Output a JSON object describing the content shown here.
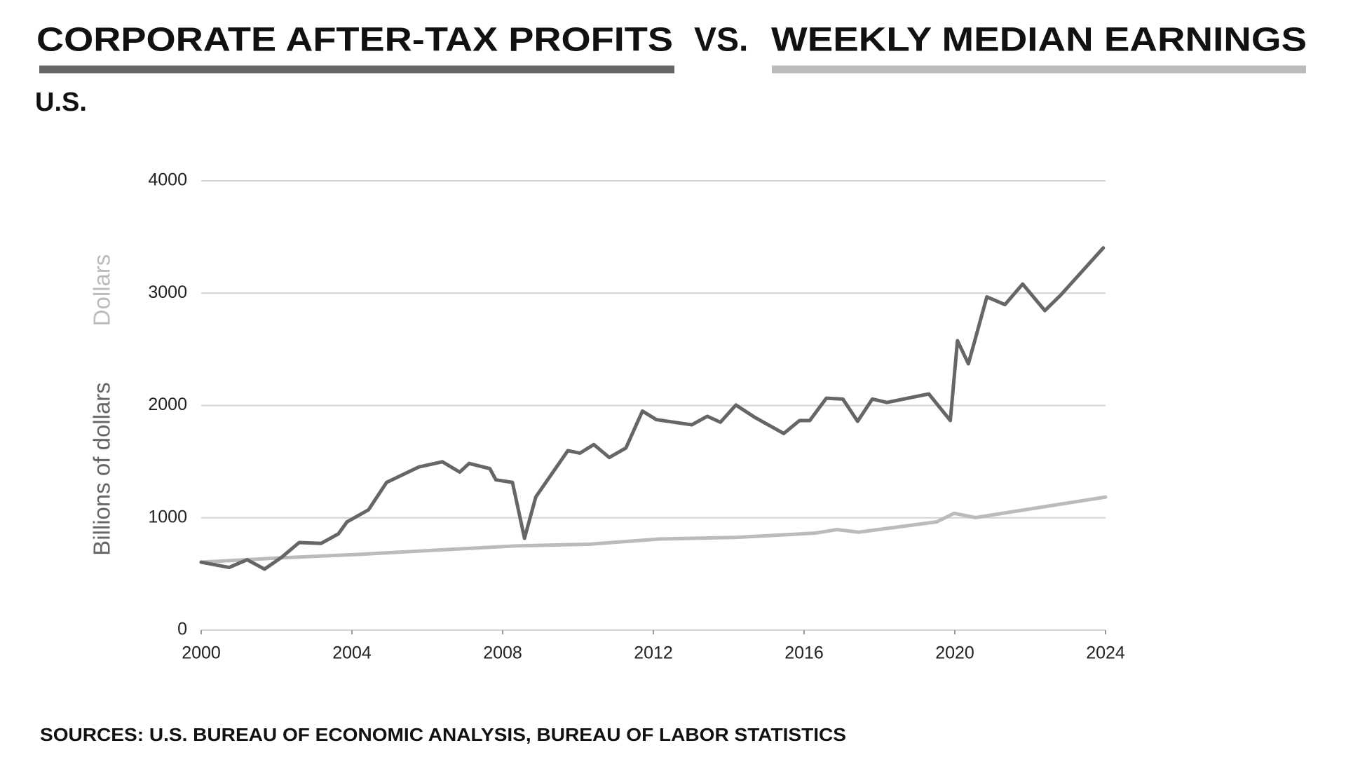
{
  "chart_data": {
    "type": "line",
    "title_separator": "VS.",
    "subtitle": "U.S.",
    "y_label": "Billions of dollars",
    "y2_label": "Dollars",
    "source": "SOURCES: U.S. BUREAU OF ECONOMIC ANALYSIS, BUREAU OF LABOR STATISTICS",
    "xlim": [
      2000,
      2024
    ],
    "xticks": [
      2000,
      2004,
      2008,
      2012,
      2016,
      2020,
      2024
    ],
    "ylim": [
      0,
      4000
    ],
    "yticks": [
      0,
      1000,
      2000,
      3000,
      4000
    ],
    "grid": true,
    "series": [
      {
        "name": "CORPORATE AFTER-TAX PROFITS",
        "color": "#666666",
        "x": [
          2000.0,
          2000.74,
          2001.22,
          2001.68,
          2002.14,
          2002.6,
          2003.18,
          2003.64,
          2003.87,
          2004.44,
          2004.92,
          2005.78,
          2006.4,
          2006.86,
          2007.11,
          2007.66,
          2007.82,
          2008.26,
          2008.58,
          2008.88,
          2009.73,
          2010.05,
          2010.42,
          2010.83,
          2011.27,
          2011.71,
          2012.08,
          2013.02,
          2013.43,
          2013.78,
          2014.19,
          2014.68,
          2015.46,
          2015.88,
          2016.15,
          2016.59,
          2017.03,
          2017.42,
          2017.81,
          2018.2,
          2019.31,
          2019.88,
          2020.07,
          2020.36,
          2020.85,
          2021.33,
          2021.8,
          2022.39,
          2022.81,
          2023.94
        ],
        "values": [
          605,
          558,
          627,
          543,
          650,
          780,
          772,
          857,
          964,
          1071,
          1315,
          1453,
          1499,
          1407,
          1484,
          1438,
          1338,
          1315,
          818,
          1186,
          1598,
          1576,
          1652,
          1537,
          1621,
          1950,
          1874,
          1828,
          1904,
          1851,
          2004,
          1897,
          1751,
          1866,
          1866,
          2065,
          2057,
          1859,
          2057,
          2027,
          2103,
          1866,
          2577,
          2371,
          2967,
          2898,
          3081,
          2845,
          2983,
          3403
        ]
      },
      {
        "name": "WEEKLY MEDIAN EARNINGS",
        "color": "#bbbbbb",
        "x": [
          2000.0,
          2002.02,
          2004.1,
          2006.17,
          2008.35,
          2010.31,
          2012.15,
          2014.22,
          2016.3,
          2016.87,
          2017.45,
          2019.52,
          2019.98,
          2020.55,
          2024.0
        ],
        "values": [
          605,
          642,
          673,
          711,
          750,
          765,
          811,
          826,
          864,
          895,
          872,
          964,
          1040,
          1002,
          1185
        ]
      }
    ]
  }
}
